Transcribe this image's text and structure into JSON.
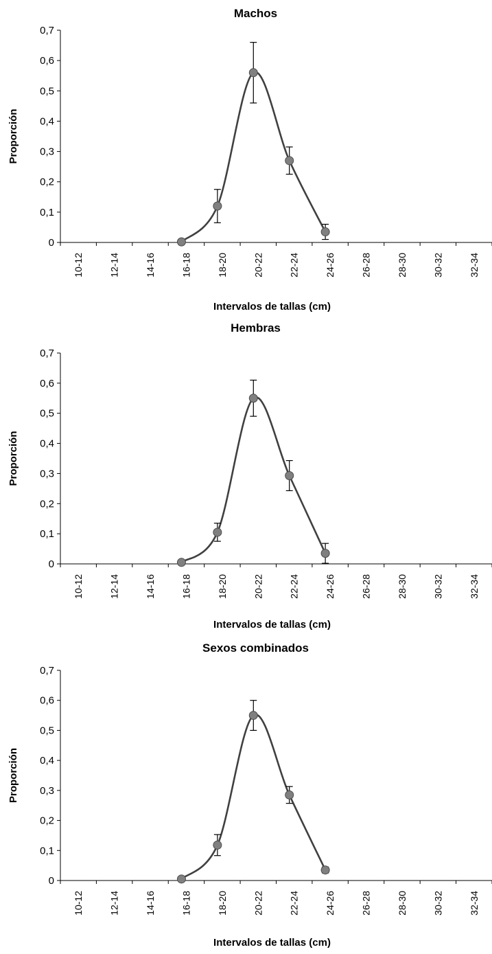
{
  "chart_data": [
    {
      "type": "line",
      "title": "Machos",
      "xlabel": "Intervalos de tallas (cm)",
      "ylabel": "Proporción",
      "ylim": [
        0,
        0.7
      ],
      "yticks": [
        "0",
        "0,1",
        "0,2",
        "0,3",
        "0,4",
        "0,5",
        "0,6",
        "0,7"
      ],
      "categories": [
        "10-12",
        "12-14",
        "14-16",
        "16-18",
        "18-20",
        "20-22",
        "22-24",
        "24-26",
        "26-28",
        "28-30",
        "30-32",
        "32-34"
      ],
      "points": [
        {
          "x": "16-18",
          "y": 0.002,
          "err": 0
        },
        {
          "x": "18-20",
          "y": 0.12,
          "err": 0.055
        },
        {
          "x": "20-22",
          "y": 0.56,
          "err": 0.1
        },
        {
          "x": "22-24",
          "y": 0.27,
          "err": 0.045
        },
        {
          "x": "24-26",
          "y": 0.035,
          "err": 0.025
        }
      ],
      "marker_color": "#808080",
      "line_color": "#404040"
    },
    {
      "type": "line",
      "title": "Hembras",
      "xlabel": "Intervalos de tallas (cm)",
      "ylabel": "Proporción",
      "ylim": [
        0,
        0.7
      ],
      "yticks": [
        "0",
        "0,1",
        "0,2",
        "0,3",
        "0,4",
        "0,5",
        "0,6",
        "0,7"
      ],
      "categories": [
        "10-12",
        "12-14",
        "14-16",
        "16-18",
        "18-20",
        "20-22",
        "22-24",
        "24-26",
        "26-28",
        "28-30",
        "30-32",
        "32-34"
      ],
      "points": [
        {
          "x": "16-18",
          "y": 0.005,
          "err": 0
        },
        {
          "x": "18-20",
          "y": 0.105,
          "err": 0.03
        },
        {
          "x": "20-22",
          "y": 0.55,
          "err": 0.06
        },
        {
          "x": "22-24",
          "y": 0.293,
          "err": 0.05
        },
        {
          "x": "24-26",
          "y": 0.035,
          "err": 0.033
        }
      ],
      "marker_color": "#808080",
      "line_color": "#404040"
    },
    {
      "type": "line",
      "title": "Sexos combinados",
      "xlabel": "Intervalos de tallas (cm)",
      "ylabel": "Proporción",
      "ylim": [
        0,
        0.7
      ],
      "yticks": [
        "0",
        "0,1",
        "0,2",
        "0,3",
        "0,4",
        "0,5",
        "0,6",
        "0,7"
      ],
      "categories": [
        "10-12",
        "12-14",
        "14-16",
        "16-18",
        "18-20",
        "20-22",
        "22-24",
        "24-26",
        "26-28",
        "28-30",
        "30-32",
        "32-34"
      ],
      "points": [
        {
          "x": "16-18",
          "y": 0.005,
          "err": 0
        },
        {
          "x": "18-20",
          "y": 0.118,
          "err": 0.035
        },
        {
          "x": "20-22",
          "y": 0.55,
          "err": 0.05
        },
        {
          "x": "22-24",
          "y": 0.285,
          "err": 0.028
        },
        {
          "x": "24-26",
          "y": 0.035,
          "err": 0.01
        }
      ],
      "marker_color": "#808080",
      "line_color": "#404040"
    }
  ]
}
